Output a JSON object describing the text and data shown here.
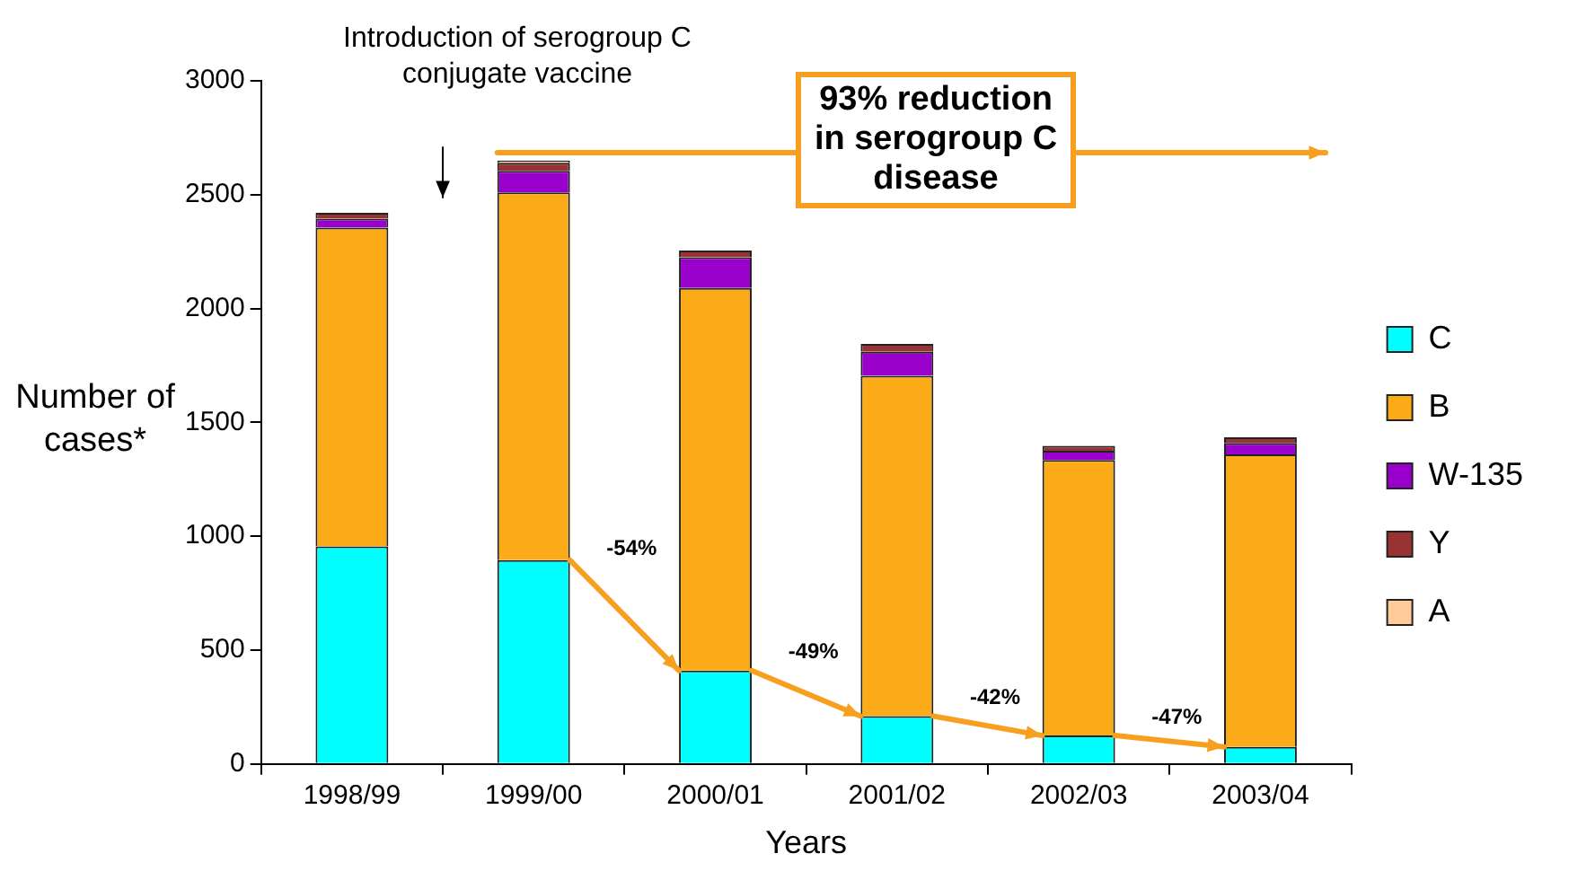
{
  "chart_data": {
    "type": "bar",
    "stacked": true,
    "xlabel": "Years",
    "ylabel": "Number of cases*",
    "categories": [
      "1998/99",
      "1999/00",
      "2000/01",
      "2001/02",
      "2002/03",
      "2003/04"
    ],
    "series": [
      {
        "name": "C",
        "color": "#00ffff",
        "values": [
          955,
          895,
          410,
          210,
          125,
          75
        ]
      },
      {
        "name": "B",
        "color": "#fbab18",
        "values": [
          1400,
          1615,
          1680,
          1495,
          1210,
          1285
        ]
      },
      {
        "name": "W-135",
        "color": "#9900cc",
        "values": [
          40,
          95,
          135,
          105,
          40,
          50
        ]
      },
      {
        "name": "Y",
        "color": "#993333",
        "values": [
          25,
          35,
          30,
          35,
          22,
          25
        ]
      },
      {
        "name": "A",
        "color": "#ffcc99",
        "values": [
          null,
          10,
          null,
          null,
          null,
          null
        ]
      }
    ],
    "ylim": [
      0,
      3000
    ],
    "yticks": [
      0,
      500,
      1000,
      1500,
      2000,
      2500,
      3000
    ],
    "grid": false,
    "legend": "right",
    "annotations": [
      "Introduction of serogroup C conjugate vaccine",
      "93% reduction in serogroup C disease",
      "-54%",
      "-49%",
      "-42%",
      "-47%"
    ]
  }
}
